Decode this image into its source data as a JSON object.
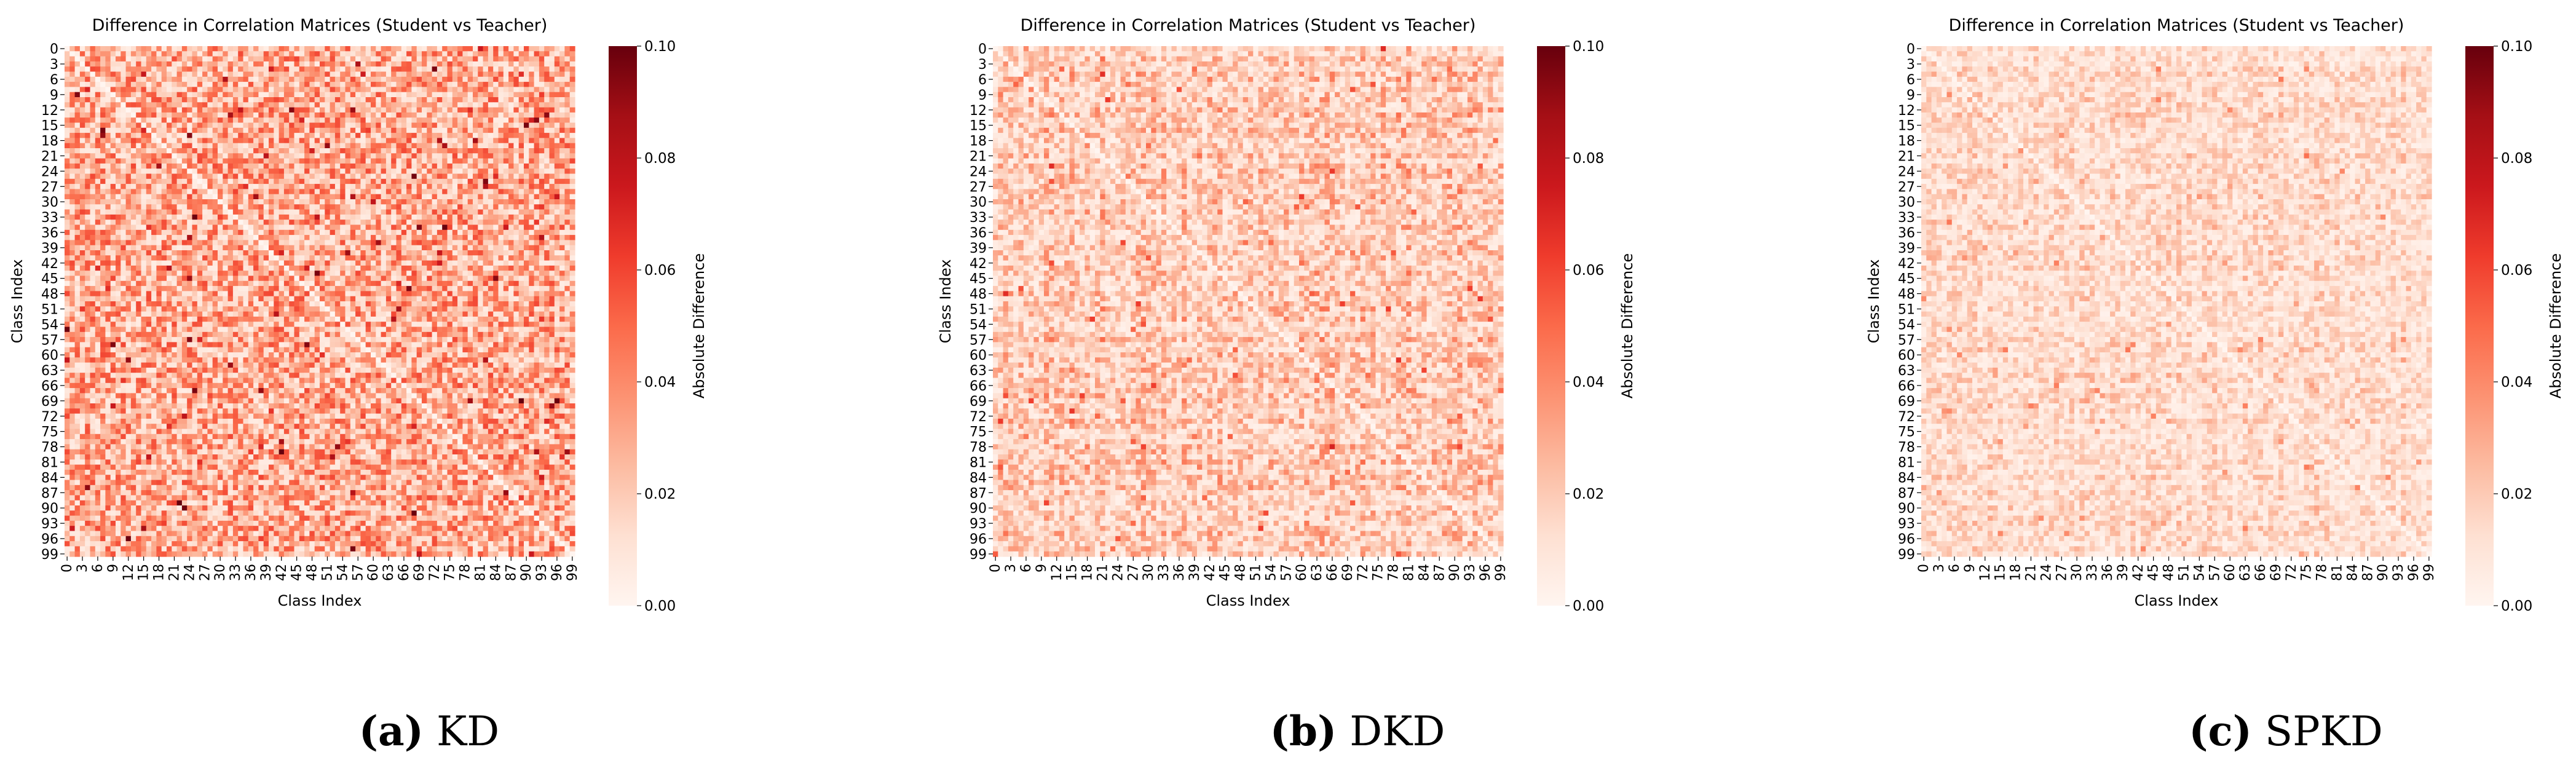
{
  "figure": {
    "colormap": [
      "#fff5f0",
      "#fee0d2",
      "#fcbba1",
      "#fc9272",
      "#fb6a4a",
      "#ef3b2c",
      "#cb181d",
      "#a50f15",
      "#67000d"
    ],
    "panels": [
      {
        "caption_letter": "(a)",
        "caption_name": "KD"
      },
      {
        "caption_letter": "(b)",
        "caption_name": "DKD"
      },
      {
        "caption_letter": "(c)",
        "caption_name": "SPKD"
      }
    ]
  },
  "chart_data": [
    {
      "type": "heatmap",
      "title": "Difference in Correlation Matrices (Student vs Teacher)",
      "xlabel": "Class Index",
      "ylabel": "Class Index",
      "n_classes": 100,
      "x_ticks": [
        "0",
        "3",
        "6",
        "9",
        "12",
        "15",
        "18",
        "21",
        "24",
        "27",
        "30",
        "33",
        "36",
        "39",
        "42",
        "45",
        "48",
        "51",
        "54",
        "57",
        "60",
        "63",
        "66",
        "69",
        "72",
        "75",
        "78",
        "81",
        "84",
        "87",
        "90",
        "93",
        "96",
        "99"
      ],
      "y_ticks": [
        "0",
        "3",
        "6",
        "9",
        "12",
        "15",
        "18",
        "21",
        "24",
        "27",
        "30",
        "33",
        "36",
        "39",
        "42",
        "45",
        "48",
        "51",
        "54",
        "57",
        "60",
        "63",
        "66",
        "69",
        "72",
        "75",
        "78",
        "81",
        "84",
        "87",
        "90",
        "93",
        "96",
        "99"
      ],
      "colorbar": {
        "label": "Absolute Difference",
        "vmin": 0.0,
        "vmax": 0.1,
        "ticks": [
          "0.00",
          "0.02",
          "0.04",
          "0.06",
          "0.08",
          "0.10"
        ]
      },
      "value_range": [
        0.0,
        0.1
      ],
      "typical_level": 0.032
    },
    {
      "type": "heatmap",
      "title": "Difference in Correlation Matrices (Student vs Teacher)",
      "xlabel": "Class Index",
      "ylabel": "Class Index",
      "n_classes": 100,
      "x_ticks": [
        "0",
        "3",
        "6",
        "9",
        "12",
        "15",
        "18",
        "21",
        "24",
        "27",
        "30",
        "33",
        "36",
        "39",
        "42",
        "45",
        "48",
        "51",
        "54",
        "57",
        "60",
        "63",
        "66",
        "69",
        "72",
        "75",
        "78",
        "81",
        "84",
        "87",
        "90",
        "93",
        "96",
        "99"
      ],
      "y_ticks": [
        "0",
        "3",
        "6",
        "9",
        "12",
        "15",
        "18",
        "21",
        "24",
        "27",
        "30",
        "33",
        "36",
        "39",
        "42",
        "45",
        "48",
        "51",
        "54",
        "57",
        "60",
        "63",
        "66",
        "69",
        "72",
        "75",
        "78",
        "81",
        "84",
        "87",
        "90",
        "93",
        "96",
        "99"
      ],
      "colorbar": {
        "label": "Absolute Difference",
        "vmin": 0.0,
        "vmax": 0.1,
        "ticks": [
          "0.00",
          "0.02",
          "0.04",
          "0.06",
          "0.08",
          "0.10"
        ]
      },
      "value_range": [
        0.0,
        0.1
      ],
      "typical_level": 0.02
    },
    {
      "type": "heatmap",
      "title": "Difference in Correlation Matrices (Student vs Teacher)",
      "xlabel": "Class Index",
      "ylabel": "Class Index",
      "n_classes": 100,
      "x_ticks": [
        "0",
        "3",
        "6",
        "9",
        "12",
        "15",
        "18",
        "21",
        "24",
        "27",
        "30",
        "33",
        "36",
        "39",
        "42",
        "45",
        "48",
        "51",
        "54",
        "57",
        "60",
        "63",
        "66",
        "69",
        "72",
        "75",
        "78",
        "81",
        "84",
        "87",
        "90",
        "93",
        "96",
        "99"
      ],
      "y_ticks": [
        "0",
        "3",
        "6",
        "9",
        "12",
        "15",
        "18",
        "21",
        "24",
        "27",
        "30",
        "33",
        "36",
        "39",
        "42",
        "45",
        "48",
        "51",
        "54",
        "57",
        "60",
        "63",
        "66",
        "69",
        "72",
        "75",
        "78",
        "81",
        "84",
        "87",
        "90",
        "93",
        "96",
        "99"
      ],
      "colorbar": {
        "label": "Absolute Difference",
        "vmin": 0.0,
        "vmax": 0.1,
        "ticks": [
          "0.00",
          "0.02",
          "0.04",
          "0.06",
          "0.08",
          "0.10"
        ]
      },
      "value_range": [
        0.0,
        0.1
      ],
      "typical_level": 0.014
    }
  ]
}
